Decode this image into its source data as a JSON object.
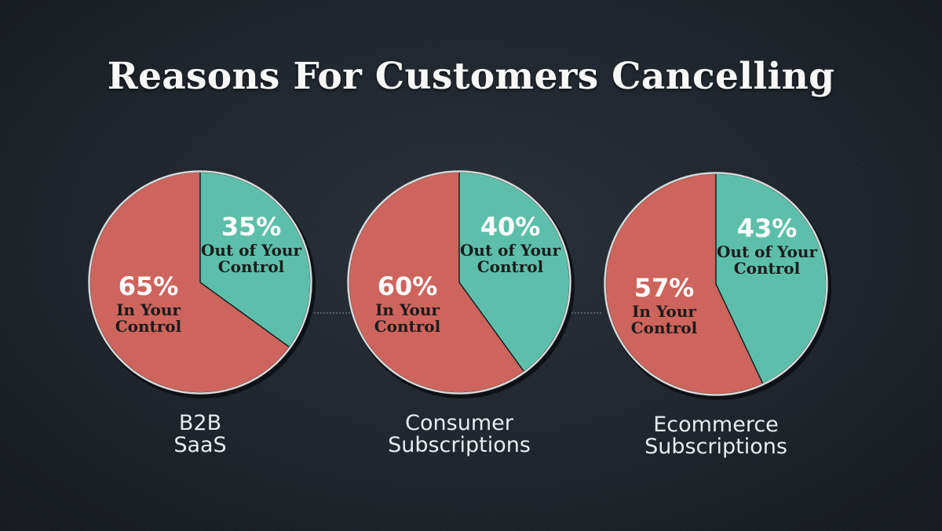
{
  "title": "Reasons For Customers Cancelling",
  "colors": {
    "in_control": "#cd645d",
    "out_of_control": "#5dbfa9",
    "background": "#1e242b"
  },
  "chart_data": [
    {
      "type": "pie",
      "category": [
        "B2B",
        "SaaS"
      ],
      "slices": [
        {
          "pct_label": "35%",
          "label": [
            "Out of Your",
            "Control"
          ],
          "value": 35,
          "color_key": "out_of_control"
        },
        {
          "pct_label": "65%",
          "label": [
            "In Your",
            "Control"
          ],
          "value": 65,
          "color_key": "in_control"
        }
      ]
    },
    {
      "type": "pie",
      "category": [
        "Consumer",
        "Subscriptions"
      ],
      "slices": [
        {
          "pct_label": "40%",
          "label": [
            "Out of Your",
            "Control"
          ],
          "value": 40,
          "color_key": "out_of_control"
        },
        {
          "pct_label": "60%",
          "label": [
            "In Your",
            "Control"
          ],
          "value": 60,
          "color_key": "in_control"
        }
      ]
    },
    {
      "type": "pie",
      "category": [
        "Ecommerce",
        "Subscriptions"
      ],
      "slices": [
        {
          "pct_label": "43%",
          "label": [
            "Out of Your",
            "Control"
          ],
          "value": 43,
          "color_key": "out_of_control"
        },
        {
          "pct_label": "57%",
          "label": [
            "In Your",
            "Control"
          ],
          "value": 57,
          "color_key": "in_control"
        }
      ]
    }
  ]
}
